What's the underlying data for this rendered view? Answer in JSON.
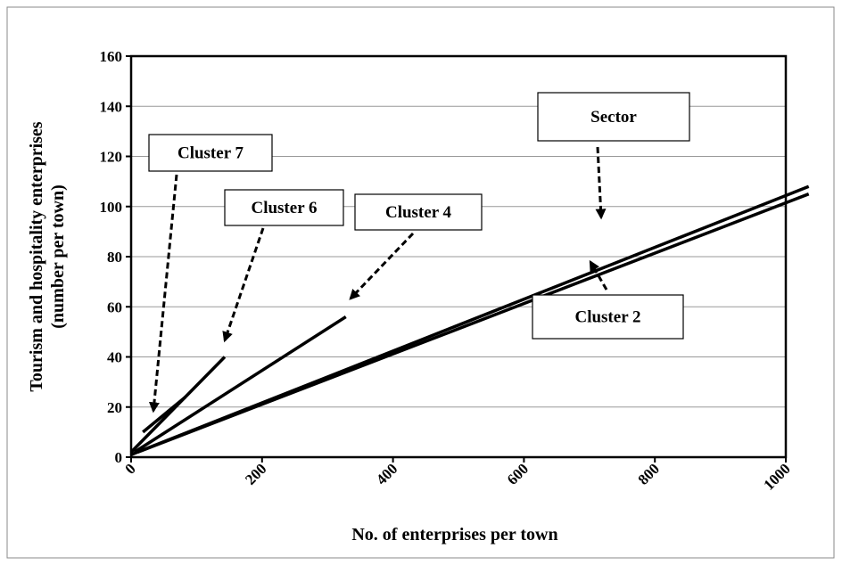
{
  "chart_data": {
    "type": "line",
    "x_label": "No. of enterprises per town",
    "y_label": [
      "Tourism and hospitality enterprises",
      "(number per town)"
    ],
    "xlim": [
      0,
      1000
    ],
    "xticks": [
      0,
      200,
      400,
      600,
      800,
      1000
    ],
    "ylim": [
      0,
      160
    ],
    "yticks": [
      0,
      20,
      40,
      60,
      80,
      100,
      120,
      140,
      160
    ],
    "grid": true,
    "series": [
      {
        "name": "Sector",
        "color": "#000000",
        "x": [
          0,
          1035
        ],
        "values": [
          1,
          108
        ]
      },
      {
        "name": "Cluster 2",
        "color": "#000000",
        "x": [
          10,
          1035
        ],
        "values": [
          2,
          105
        ]
      },
      {
        "name": "Cluster 4",
        "color": "#000000",
        "x": [
          5,
          328
        ],
        "values": [
          2,
          56
        ]
      },
      {
        "name": "Cluster 6",
        "color": "#000000",
        "x": [
          0,
          143
        ],
        "values": [
          2,
          40
        ]
      },
      {
        "name": "Cluster 7",
        "color": "#000000",
        "x": [
          18,
          83
        ],
        "values": [
          10,
          24
        ]
      }
    ]
  }
}
